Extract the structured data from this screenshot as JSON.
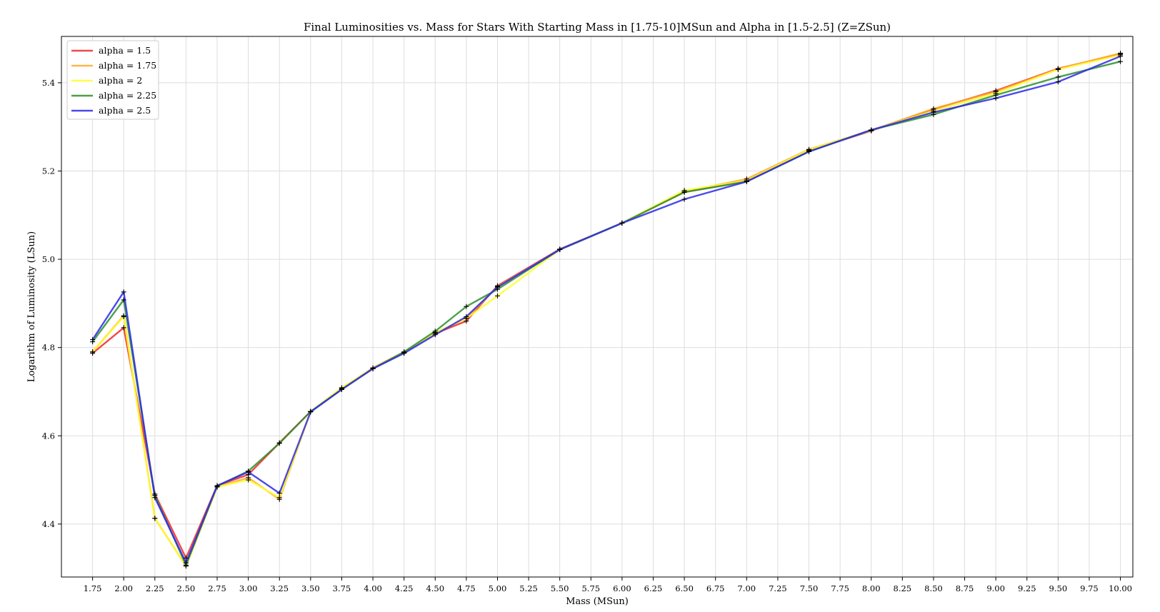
{
  "chart_data": {
    "type": "line",
    "title": "Final Luminosities vs. Mass for Stars With Starting Mass in [1.75-10]MSun and Alpha in [1.5-2.5] (Z=ZSun)",
    "xlabel": "Mass (MSun)",
    "ylabel": "Logarithm of Luminosity (LSun)",
    "xlim": [
      1.5,
      10.1
    ],
    "ylim": [
      4.28,
      5.505
    ],
    "xticks": [
      "1.75",
      "2.00",
      "2.25",
      "2.50",
      "2.75",
      "3.00",
      "3.25",
      "3.50",
      "3.75",
      "4.00",
      "4.25",
      "4.50",
      "4.75",
      "5.00",
      "5.25",
      "5.50",
      "5.75",
      "6.00",
      "6.25",
      "6.50",
      "6.75",
      "7.00",
      "7.25",
      "7.50",
      "7.75",
      "8.00",
      "8.25",
      "8.50",
      "8.75",
      "9.00",
      "9.25",
      "9.50",
      "9.75",
      "10.00"
    ],
    "yticks": [
      "4.4",
      "4.6",
      "4.8",
      "5.0",
      "5.2",
      "5.4"
    ],
    "grid": true,
    "legend_position": "top-left",
    "x": [
      1.75,
      2.0,
      2.25,
      2.5,
      2.75,
      3.0,
      3.25,
      3.5,
      3.75,
      4.0,
      4.25,
      4.5,
      4.75,
      5.0,
      5.5,
      6.0,
      6.5,
      7.0,
      7.5,
      8.0,
      8.5,
      9.0,
      9.5,
      10.0
    ],
    "series": [
      {
        "name": "alpha = 1.5",
        "color": "#f0282a",
        "values": [
          4.787,
          4.845,
          4.468,
          4.323,
          4.487,
          4.512,
          4.584,
          4.655,
          4.706,
          4.752,
          4.788,
          4.832,
          4.86,
          4.94,
          5.023,
          5.082,
          5.152,
          5.178,
          5.246,
          5.291,
          5.34,
          5.382,
          5.432,
          5.465
        ]
      },
      {
        "name": "alpha = 1.75",
        "color": "#fdaa28",
        "values": [
          4.79,
          4.872,
          4.413,
          4.305,
          4.484,
          4.505,
          4.456,
          4.655,
          4.707,
          4.754,
          4.79,
          4.833,
          4.866,
          4.938,
          5.022,
          5.082,
          5.153,
          5.182,
          5.249,
          5.292,
          5.341,
          5.38,
          5.431,
          5.467
        ]
      },
      {
        "name": "alpha = 2",
        "color": "#ffff2a",
        "values": [
          4.79,
          4.87,
          4.413,
          4.305,
          4.484,
          4.5,
          4.46,
          4.655,
          4.709,
          4.752,
          4.788,
          4.834,
          4.866,
          4.917,
          5.022,
          5.082,
          5.156,
          5.178,
          5.248,
          5.292,
          5.336,
          5.376,
          5.43,
          5.463
        ]
      },
      {
        "name": "alpha = 2.25",
        "color": "#2b8f2b",
        "values": [
          4.813,
          4.908,
          4.465,
          4.307,
          4.486,
          4.52,
          4.583,
          4.655,
          4.705,
          4.752,
          4.79,
          4.837,
          4.893,
          4.932,
          5.022,
          5.082,
          5.152,
          5.176,
          5.244,
          5.293,
          5.328,
          5.372,
          5.413,
          5.448
        ]
      },
      {
        "name": "alpha = 2.5",
        "color": "#2b2ae8",
        "values": [
          4.818,
          4.926,
          4.46,
          4.312,
          4.487,
          4.518,
          4.47,
          4.654,
          4.705,
          4.752,
          4.787,
          4.829,
          4.87,
          4.937,
          5.022,
          5.082,
          5.136,
          5.176,
          5.244,
          5.293,
          5.333,
          5.365,
          5.402,
          5.46
        ]
      }
    ]
  }
}
